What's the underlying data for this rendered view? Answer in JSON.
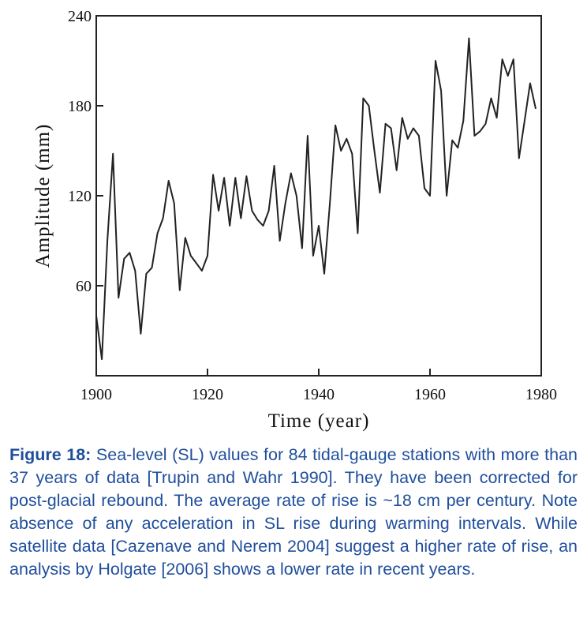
{
  "chart_data": {
    "type": "line",
    "x_label": "Time (year)",
    "y_label": "Amplitude (mm)",
    "xlim": [
      1900,
      1980
    ],
    "xticks": [
      1900,
      1920,
      1940,
      1960,
      1980
    ],
    "ylim": [
      0,
      240
    ],
    "yticks": [
      60,
      120,
      180,
      240
    ],
    "color": "#222222",
    "x": [
      1900,
      1901,
      1902,
      1903,
      1904,
      1905,
      1906,
      1907,
      1908,
      1909,
      1910,
      1911,
      1912,
      1913,
      1914,
      1915,
      1916,
      1917,
      1918,
      1919,
      1920,
      1921,
      1922,
      1923,
      1924,
      1925,
      1926,
      1927,
      1928,
      1929,
      1930,
      1931,
      1932,
      1933,
      1934,
      1935,
      1936,
      1937,
      1938,
      1939,
      1940,
      1941,
      1942,
      1943,
      1944,
      1945,
      1946,
      1947,
      1948,
      1949,
      1950,
      1951,
      1952,
      1953,
      1954,
      1955,
      1956,
      1957,
      1958,
      1959,
      1960,
      1961,
      1962,
      1963,
      1964,
      1965,
      1966,
      1967,
      1968,
      1969,
      1970,
      1971,
      1972,
      1973,
      1974,
      1975,
      1976,
      1977,
      1978,
      1979
    ],
    "values": [
      40,
      11,
      90,
      148,
      52,
      78,
      82,
      70,
      28,
      68,
      72,
      95,
      105,
      130,
      115,
      57,
      92,
      80,
      75,
      70,
      80,
      134,
      110,
      132,
      100,
      132,
      105,
      133,
      110,
      104,
      100,
      110,
      140,
      90,
      115,
      135,
      120,
      85,
      160,
      80,
      100,
      68,
      115,
      167,
      150,
      158,
      148,
      95,
      185,
      180,
      150,
      122,
      168,
      165,
      137,
      172,
      158,
      165,
      160,
      125,
      120,
      210,
      190,
      120,
      157,
      152,
      170,
      225,
      160,
      163,
      168,
      185,
      172,
      211,
      200,
      211,
      145,
      170,
      195,
      178
    ],
    "caption_label": "Figure 18:",
    "caption": "Sea-level (SL) values for 84 tidal-gauge stations with more than 37 years of data [Trupin and Wahr 1990]. They have been corrected for post-glacial rebound. The average rate of rise is ~18 cm per century. Note absence of any acceleration in SL rise during warming intervals. While satellite data [Cazenave and Nerem 2004] suggest a higher rate of rise, an analysis by Holgate [2006] shows a lower rate in recent years."
  }
}
